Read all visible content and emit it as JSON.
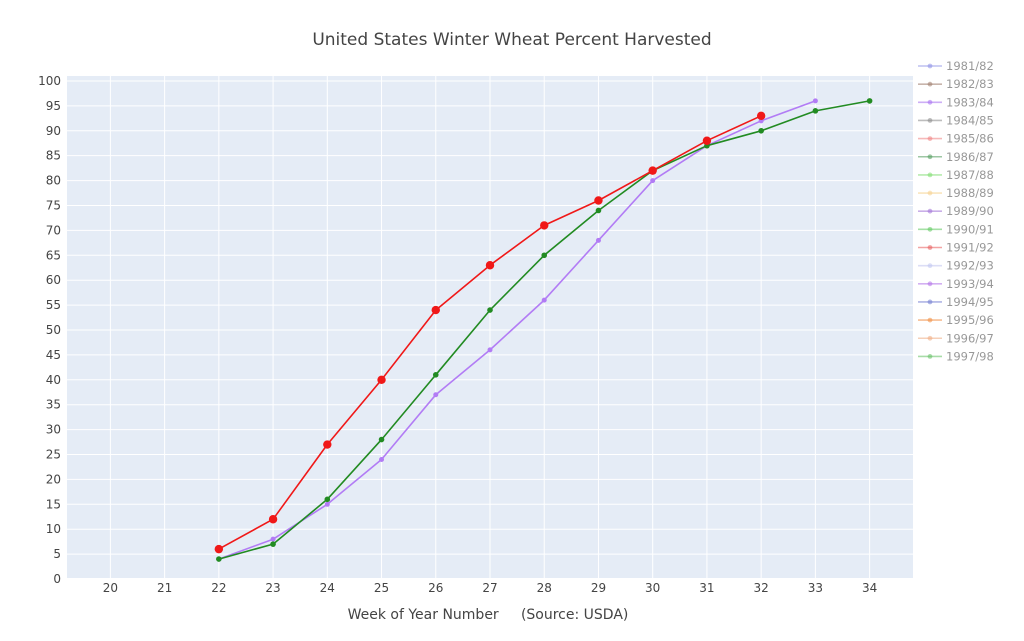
{
  "chart_data": {
    "type": "line",
    "title": "United States Winter Wheat Percent Harvested",
    "xlabel": "Week of Year Number     (Source: USDA)",
    "ylabel": "",
    "xlim": [
      19.2,
      34.8
    ],
    "ylim": [
      0,
      101
    ],
    "x_ticks": [
      20,
      21,
      22,
      23,
      24,
      25,
      26,
      27,
      28,
      29,
      30,
      31,
      32,
      33,
      34
    ],
    "y_ticks": [
      0,
      5,
      10,
      15,
      20,
      25,
      30,
      35,
      40,
      45,
      50,
      55,
      60,
      65,
      70,
      75,
      80,
      85,
      90,
      95,
      100
    ],
    "grid": true,
    "legend_position": "right",
    "legend": [
      {
        "name": "1981/82",
        "color": "#8a8ee6"
      },
      {
        "name": "1982/83",
        "color": "#9c7a6a"
      },
      {
        "name": "1983/84",
        "color": "#a56df0"
      },
      {
        "name": "1984/85",
        "color": "#888888"
      },
      {
        "name": "1985/86",
        "color": "#f08080"
      },
      {
        "name": "1986/87",
        "color": "#4f9a5a"
      },
      {
        "name": "1987/88",
        "color": "#7ddc6e"
      },
      {
        "name": "1988/89",
        "color": "#f5d08a"
      },
      {
        "name": "1989/90",
        "color": "#9e6fd6"
      },
      {
        "name": "1990/91",
        "color": "#5cc85c"
      },
      {
        "name": "1991/92",
        "color": "#e85a5a"
      },
      {
        "name": "1992/93",
        "color": "#c0c4f0"
      },
      {
        "name": "1993/94",
        "color": "#b070e8"
      },
      {
        "name": "1994/95",
        "color": "#6f7ad0"
      },
      {
        "name": "1995/96",
        "color": "#f08a3c"
      },
      {
        "name": "1996/97",
        "color": "#f0aa80"
      },
      {
        "name": "1997/98",
        "color": "#62c062"
      }
    ],
    "series": [
      {
        "color": "#b27cf5",
        "marker_size": 2.5,
        "x": [
          22,
          23,
          24,
          25,
          26,
          27,
          28,
          29,
          30,
          31,
          32,
          33
        ],
        "values": [
          4,
          8,
          15,
          24,
          37,
          46,
          56,
          68,
          80,
          87,
          92,
          96
        ]
      },
      {
        "color": "#228b22",
        "marker_size": 2.8,
        "x": [
          22,
          23,
          24,
          25,
          26,
          27,
          28,
          29,
          30,
          31,
          32,
          33,
          34
        ],
        "values": [
          4,
          7,
          16,
          28,
          41,
          54,
          65,
          74,
          82,
          87,
          90,
          94,
          96
        ]
      },
      {
        "color": "#f01818",
        "marker_size": 4.2,
        "x": [
          22,
          23,
          24,
          25,
          26,
          27,
          28,
          29,
          30,
          31,
          32
        ],
        "values": [
          6,
          12,
          27,
          40,
          54,
          63,
          71,
          76,
          82,
          88,
          93
        ]
      }
    ]
  }
}
